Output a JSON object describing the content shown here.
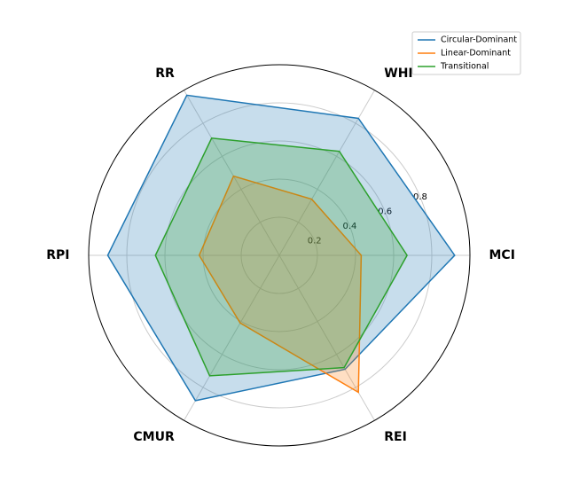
{
  "chart_data": {
    "type": "radar",
    "categories": [
      "MCI",
      "WHI",
      "RR",
      "RPI",
      "CMUR",
      "REI"
    ],
    "series": [
      {
        "name": "Circular-Dominant",
        "color": "#1f77b4",
        "values": [
          0.92,
          0.83,
          0.97,
          0.9,
          0.88,
          0.69
        ]
      },
      {
        "name": "Linear-Dominant",
        "color": "#ff7f0e",
        "values": [
          0.43,
          0.34,
          0.48,
          0.42,
          0.41,
          0.83
        ]
      },
      {
        "name": "Transitional",
        "color": "#2ca02c",
        "values": [
          0.67,
          0.63,
          0.71,
          0.65,
          0.73,
          0.68
        ]
      }
    ],
    "ylim": [
      0,
      1
    ],
    "yticks": [
      0.2,
      0.4,
      0.6,
      0.8
    ],
    "grid": true,
    "legend": "upper right"
  }
}
